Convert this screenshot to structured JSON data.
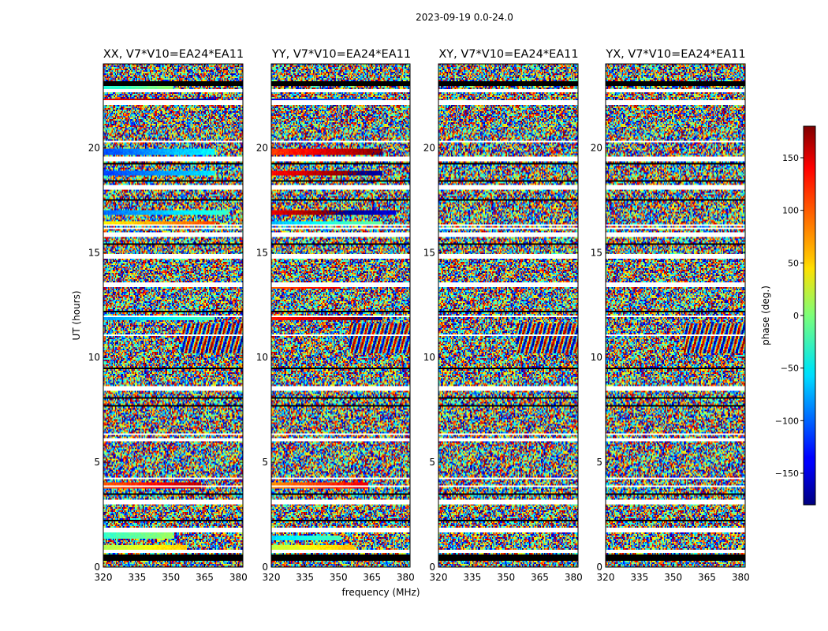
{
  "suptitle": "2023-09-19 0.0-24.0",
  "chart_data": {
    "type": "heatmap",
    "xlabel": "frequency (MHz)",
    "ylabel": "UT (hours)",
    "xlim": [
      320,
      382
    ],
    "ylim": [
      0,
      24
    ],
    "xticks": [
      320,
      335,
      350,
      365,
      380
    ],
    "yticks": [
      0,
      5,
      10,
      15,
      20
    ],
    "colormap": "jet",
    "panels": [
      {
        "title": "XX, V7*V10=EA24*EA11",
        "coherent_bands": [
          [
            0.9,
            0.3,
            0.6
          ],
          [
            1.5,
            -0.5,
            0.5
          ],
          [
            3.9,
            1.8,
            0.7
          ],
          [
            11.9,
            -1.4,
            0.8
          ],
          [
            16.4,
            0.8,
            0.8
          ],
          [
            16.9,
            -1.7,
            0.9
          ],
          [
            18.8,
            -2.0,
            0.8
          ],
          [
            19.8,
            -1.9,
            0.8
          ],
          [
            22.2,
            2.4,
            0.8
          ],
          [
            22.9,
            -0.6,
            0.5
          ]
        ]
      },
      {
        "title": "YY, V7*V10=EA24*EA11",
        "coherent_bands": [
          [
            0.9,
            0.4,
            0.6
          ],
          [
            1.4,
            -1.0,
            0.5
          ],
          [
            3.9,
            1.5,
            0.7
          ],
          [
            11.9,
            2.2,
            0.8
          ],
          [
            13.4,
            1.8,
            0.5
          ],
          [
            16.4,
            -1.2,
            0.8
          ],
          [
            16.9,
            2.5,
            0.9
          ],
          [
            18.8,
            2.3,
            0.8
          ],
          [
            19.8,
            2.0,
            0.8
          ],
          [
            22.2,
            -2.4,
            0.8
          ]
        ]
      },
      {
        "title": "XY, V7*V10=EA24*EA11",
        "coherent_bands": []
      },
      {
        "title": "YX, V7*V10=EA24*EA11",
        "coherent_bands": []
      }
    ],
    "colorbar": {
      "label": "phase (deg.)",
      "range": [
        -180,
        180
      ],
      "ticks": [
        -150,
        -100,
        -50,
        0,
        50,
        100,
        150
      ]
    }
  }
}
